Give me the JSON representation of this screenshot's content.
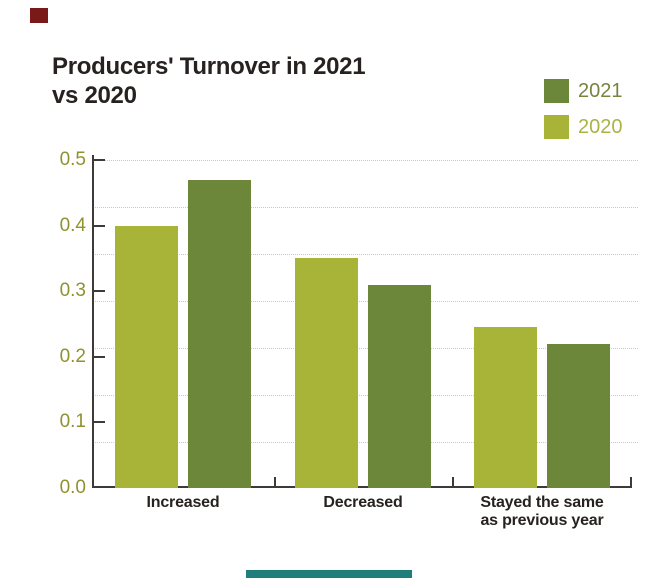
{
  "decorations": {
    "red_block_color": "#7a1a18",
    "teal_block_color": "#1f7e7c"
  },
  "title": {
    "line1": "Producers' Turnover in 2021",
    "line2": "vs 2020"
  },
  "legend": {
    "position": "top-right",
    "items": [
      {
        "label": "2021",
        "swatch_color": "#6c863a",
        "text_color": "#76843f"
      },
      {
        "label": "2020",
        "swatch_color": "#a8b437",
        "text_color": "#a9b446"
      }
    ]
  },
  "chart_data": {
    "type": "bar",
    "title": "Producers' Turnover in 2021 vs 2020",
    "categories": [
      "Increased",
      "Decreased",
      "Stayed the same\nas previous year"
    ],
    "series": [
      {
        "name": "2021",
        "color": "#6c863a",
        "values": [
          0.47,
          0.31,
          0.22
        ]
      },
      {
        "name": "2020",
        "color": "#a8b437",
        "values": [
          0.4,
          0.35,
          0.245
        ]
      }
    ],
    "bar_order_in_group": [
      "2020",
      "2021"
    ],
    "xlabel": "",
    "ylabel": "",
    "ylim": [
      0.0,
      0.5
    ],
    "yticks": [
      0.5,
      0.4,
      0.3,
      0.2,
      0.1,
      0.0
    ],
    "ytick_labels": [
      "0.5",
      "0.4",
      "0.3",
      "0.2",
      "0.1",
      "0.0"
    ],
    "grid": "dotted-horizontal",
    "legend_position": "top-right"
  }
}
